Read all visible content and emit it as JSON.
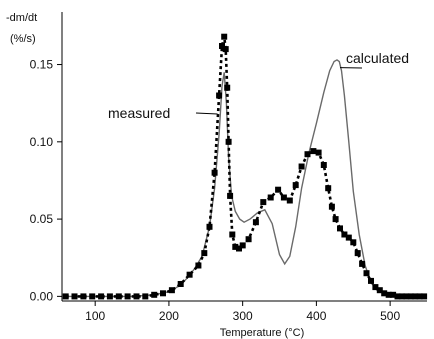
{
  "chart_data": {
    "type": "line",
    "title": "",
    "ylabel_line1": "-dm/dt",
    "ylabel_line2": "(%/s)",
    "xlabel": "Temperature (°C)",
    "xlim": [
      55,
      550
    ],
    "ylim": [
      -0.003,
      0.184
    ],
    "x_ticks": [
      100,
      200,
      300,
      400,
      500
    ],
    "y_ticks": [
      0.0,
      0.05,
      0.1,
      0.15
    ],
    "x_tick_labels": [
      "100",
      "200",
      "300",
      "400",
      "500"
    ],
    "y_tick_labels": [
      "0.00",
      "0.05",
      "0.10",
      "0.15"
    ],
    "grid": false,
    "legend": "none",
    "annotations": [
      "measured",
      "calculated"
    ],
    "series": [
      {
        "name": "measured",
        "style": "dashed-square-markers",
        "color": "#000000",
        "x": [
          60,
          72,
          84,
          96,
          108,
          120,
          132,
          144,
          156,
          168,
          180,
          192,
          204,
          216,
          228,
          240,
          248,
          255,
          262,
          268,
          272,
          275,
          277,
          279,
          281,
          283,
          286,
          290,
          295,
          300,
          308,
          318,
          328,
          338,
          348,
          356,
          364,
          372,
          380,
          388,
          396,
          403,
          410,
          416,
          421,
          426,
          432,
          438,
          444,
          450,
          456,
          462,
          468,
          474,
          480,
          486,
          492,
          498,
          504,
          510,
          516,
          522,
          528,
          534,
          540,
          546
        ],
        "y": [
          0,
          0,
          0,
          0,
          0,
          0,
          0,
          0,
          0,
          0,
          0.001,
          0.002,
          0.004,
          0.008,
          0.014,
          0.02,
          0.028,
          0.045,
          0.08,
          0.13,
          0.162,
          0.168,
          0.16,
          0.135,
          0.1,
          0.065,
          0.04,
          0.032,
          0.031,
          0.033,
          0.037,
          0.048,
          0.061,
          0.064,
          0.069,
          0.064,
          0.062,
          0.072,
          0.084,
          0.092,
          0.094,
          0.093,
          0.085,
          0.07,
          0.058,
          0.05,
          0.044,
          0.04,
          0.038,
          0.035,
          0.028,
          0.021,
          0.015,
          0.01,
          0.006,
          0.004,
          0.002,
          0.001,
          0.001,
          0,
          0,
          0,
          0,
          0,
          0,
          0
        ]
      },
      {
        "name": "calculated",
        "style": "solid",
        "color": "#6a6a6a",
        "x": [
          60,
          100,
          150,
          180,
          200,
          215,
          225,
          235,
          245,
          255,
          262,
          268,
          272,
          275,
          278,
          281,
          285,
          290,
          296,
          302,
          310,
          320,
          330,
          340,
          350,
          357,
          364,
          372,
          380,
          390,
          400,
          410,
          418,
          424,
          428,
          431,
          434,
          438,
          444,
          450,
          458,
          466,
          474,
          482,
          492,
          505,
          520,
          535,
          550
        ],
        "y": [
          0,
          0,
          0,
          0.001,
          0.003,
          0.007,
          0.012,
          0.018,
          0.026,
          0.045,
          0.07,
          0.105,
          0.136,
          0.145,
          0.125,
          0.09,
          0.065,
          0.055,
          0.05,
          0.048,
          0.05,
          0.054,
          0.056,
          0.047,
          0.027,
          0.021,
          0.026,
          0.045,
          0.07,
          0.093,
          0.112,
          0.132,
          0.146,
          0.152,
          0.153,
          0.152,
          0.146,
          0.13,
          0.1,
          0.068,
          0.04,
          0.02,
          0.009,
          0.004,
          0.002,
          0.001,
          0,
          0,
          0
        ]
      }
    ]
  }
}
